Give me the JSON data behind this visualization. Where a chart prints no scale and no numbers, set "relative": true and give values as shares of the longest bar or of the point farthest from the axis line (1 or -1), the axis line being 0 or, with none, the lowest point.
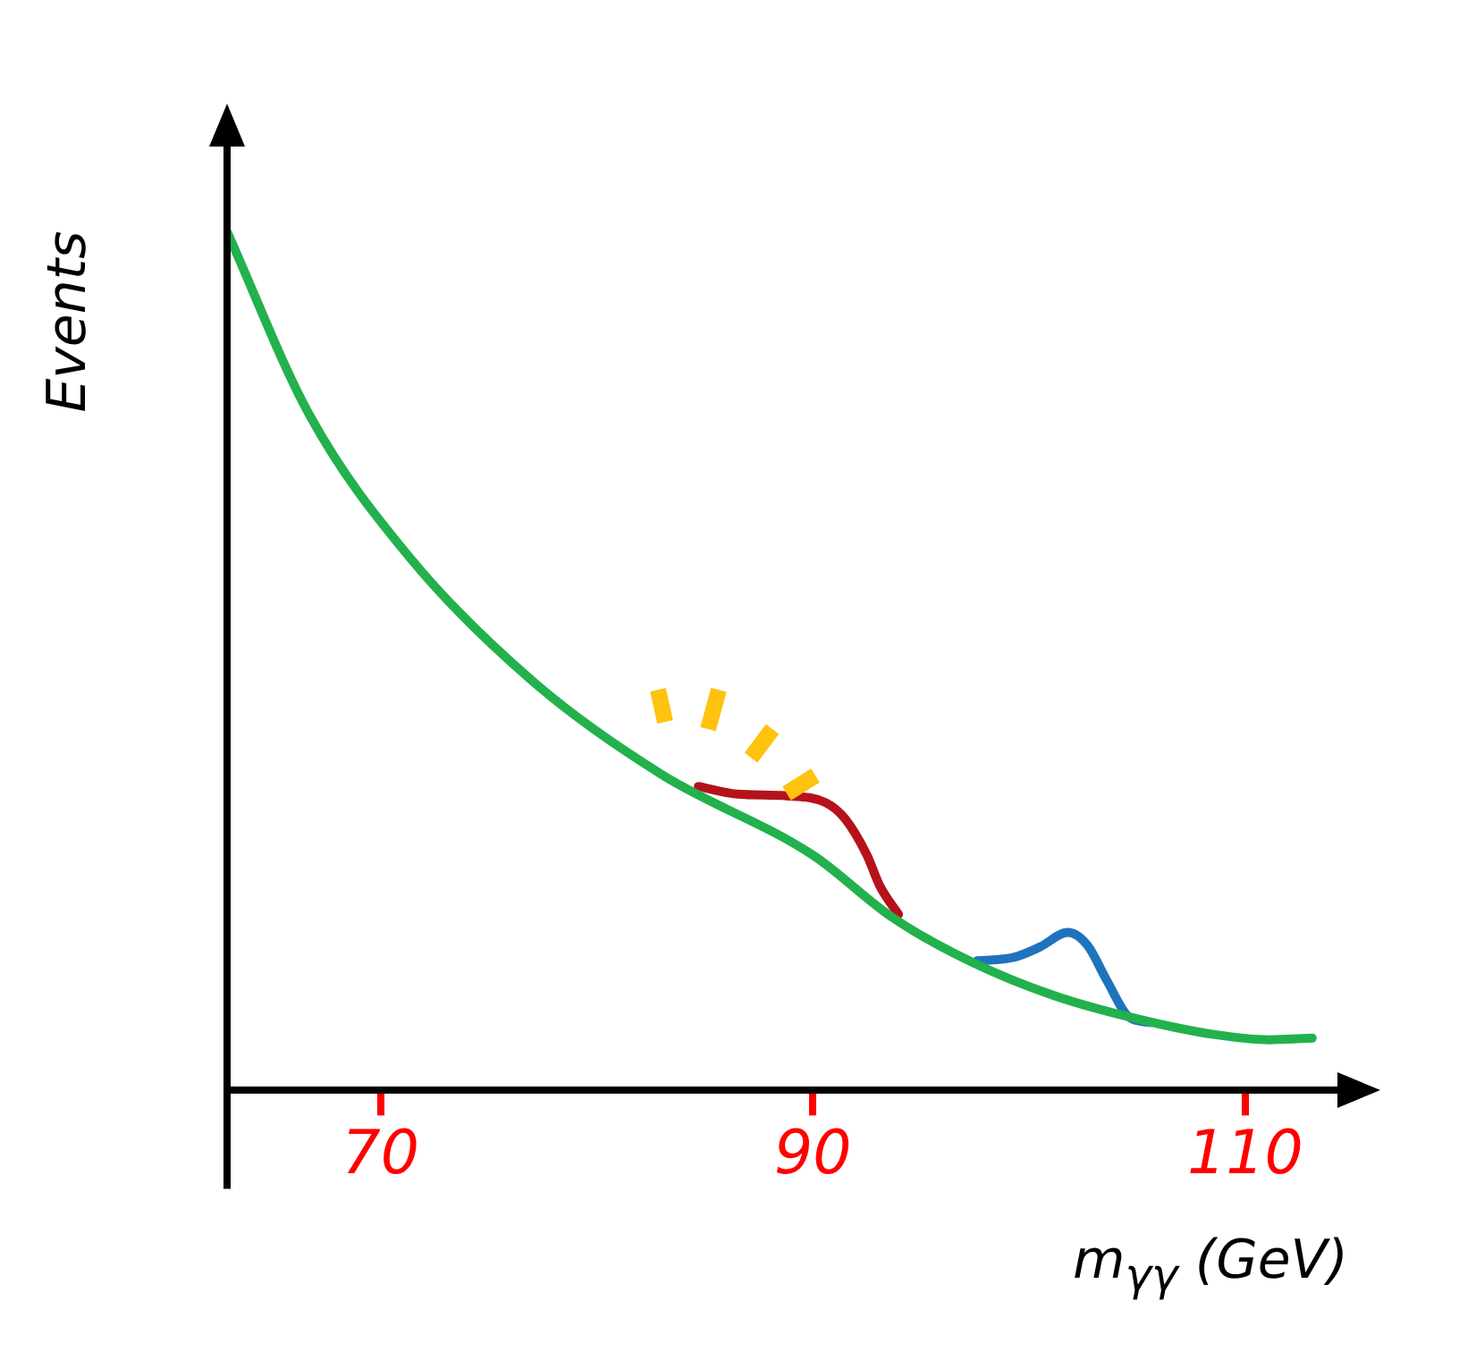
{
  "chart_data": {
    "type": "line",
    "relative": true,
    "xlabel": "m$_{γγ}$ (GeV)",
    "ylabel": "Events",
    "xlim": [
      62.9,
      114.1
    ],
    "xticks": [
      70,
      90,
      110
    ],
    "grid": false,
    "legend": false,
    "marker": "none",
    "line_style": "solid",
    "series": [
      {
        "color": "#22b14c",
        "x": [
          62.9,
          66.7,
          71.4,
          77.2,
          83.0,
          90,
          93.7,
          97.4,
          101.1,
          104.9,
          108.6,
          111.1,
          113.1
        ],
        "values": [
          1.0,
          0.787,
          0.619,
          0.473,
          0.368,
          0.274,
          0.201,
          0.149,
          0.111,
          0.084,
          0.065,
          0.059,
          0.061
        ]
      },
      {
        "color": "#b5121b",
        "x": [
          84.7,
          86.5,
          88.8,
          90.6,
          91.5,
          92.5,
          93.1,
          93.96
        ],
        "values": [
          0.354,
          0.345,
          0.343,
          0.335,
          0.316,
          0.274,
          0.238,
          0.205
        ]
      },
      {
        "color": "#1e73be",
        "x": [
          97.6,
          99.3,
          100.5,
          101.8,
          102.7,
          103.6,
          104.6,
          105.6
        ],
        "values": [
          0.151,
          0.155,
          0.167,
          0.184,
          0.169,
          0.128,
          0.086,
          0.079
        ]
      }
    ]
  }
}
